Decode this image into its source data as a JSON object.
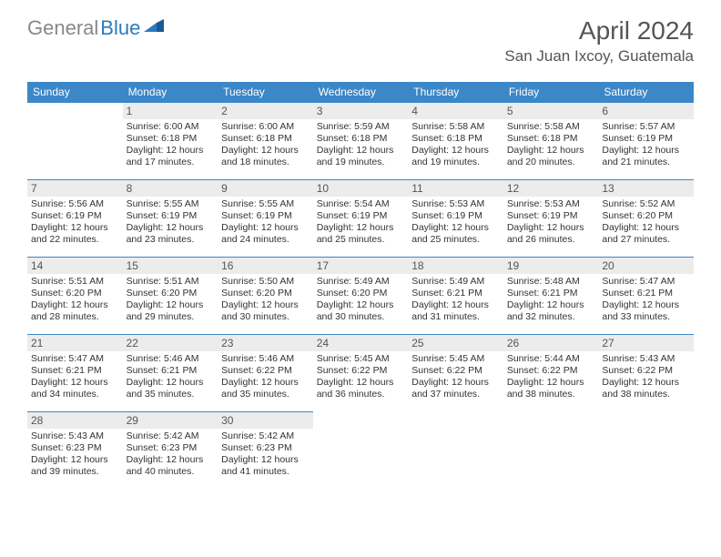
{
  "logo": {
    "gray": "General",
    "blue": "Blue"
  },
  "title": "April 2024",
  "location": "San Juan Ixcoy, Guatemala",
  "colors": {
    "header_bg": "#3b87c8",
    "header_text": "#ffffff",
    "daybar_bg": "#ececec",
    "text": "#333333",
    "title_text": "#555555",
    "logo_gray": "#888888",
    "logo_blue": "#2b7bbf",
    "border": "#3b87c8"
  },
  "typography": {
    "title_fontsize": 28,
    "location_fontsize": 17,
    "weekday_fontsize": 12,
    "daynum_fontsize": 12,
    "body_fontsize": 10.5
  },
  "weekdays": [
    "Sunday",
    "Monday",
    "Tuesday",
    "Wednesday",
    "Thursday",
    "Friday",
    "Saturday"
  ],
  "first_weekday_offset": 1,
  "days": [
    {
      "n": 1,
      "sr": "6:00 AM",
      "ss": "6:18 PM",
      "dl": "12 hours and 17 minutes."
    },
    {
      "n": 2,
      "sr": "6:00 AM",
      "ss": "6:18 PM",
      "dl": "12 hours and 18 minutes."
    },
    {
      "n": 3,
      "sr": "5:59 AM",
      "ss": "6:18 PM",
      "dl": "12 hours and 19 minutes."
    },
    {
      "n": 4,
      "sr": "5:58 AM",
      "ss": "6:18 PM",
      "dl": "12 hours and 19 minutes."
    },
    {
      "n": 5,
      "sr": "5:58 AM",
      "ss": "6:18 PM",
      "dl": "12 hours and 20 minutes."
    },
    {
      "n": 6,
      "sr": "5:57 AM",
      "ss": "6:19 PM",
      "dl": "12 hours and 21 minutes."
    },
    {
      "n": 7,
      "sr": "5:56 AM",
      "ss": "6:19 PM",
      "dl": "12 hours and 22 minutes."
    },
    {
      "n": 8,
      "sr": "5:55 AM",
      "ss": "6:19 PM",
      "dl": "12 hours and 23 minutes."
    },
    {
      "n": 9,
      "sr": "5:55 AM",
      "ss": "6:19 PM",
      "dl": "12 hours and 24 minutes."
    },
    {
      "n": 10,
      "sr": "5:54 AM",
      "ss": "6:19 PM",
      "dl": "12 hours and 25 minutes."
    },
    {
      "n": 11,
      "sr": "5:53 AM",
      "ss": "6:19 PM",
      "dl": "12 hours and 25 minutes."
    },
    {
      "n": 12,
      "sr": "5:53 AM",
      "ss": "6:19 PM",
      "dl": "12 hours and 26 minutes."
    },
    {
      "n": 13,
      "sr": "5:52 AM",
      "ss": "6:20 PM",
      "dl": "12 hours and 27 minutes."
    },
    {
      "n": 14,
      "sr": "5:51 AM",
      "ss": "6:20 PM",
      "dl": "12 hours and 28 minutes."
    },
    {
      "n": 15,
      "sr": "5:51 AM",
      "ss": "6:20 PM",
      "dl": "12 hours and 29 minutes."
    },
    {
      "n": 16,
      "sr": "5:50 AM",
      "ss": "6:20 PM",
      "dl": "12 hours and 30 minutes."
    },
    {
      "n": 17,
      "sr": "5:49 AM",
      "ss": "6:20 PM",
      "dl": "12 hours and 30 minutes."
    },
    {
      "n": 18,
      "sr": "5:49 AM",
      "ss": "6:21 PM",
      "dl": "12 hours and 31 minutes."
    },
    {
      "n": 19,
      "sr": "5:48 AM",
      "ss": "6:21 PM",
      "dl": "12 hours and 32 minutes."
    },
    {
      "n": 20,
      "sr": "5:47 AM",
      "ss": "6:21 PM",
      "dl": "12 hours and 33 minutes."
    },
    {
      "n": 21,
      "sr": "5:47 AM",
      "ss": "6:21 PM",
      "dl": "12 hours and 34 minutes."
    },
    {
      "n": 22,
      "sr": "5:46 AM",
      "ss": "6:21 PM",
      "dl": "12 hours and 35 minutes."
    },
    {
      "n": 23,
      "sr": "5:46 AM",
      "ss": "6:22 PM",
      "dl": "12 hours and 35 minutes."
    },
    {
      "n": 24,
      "sr": "5:45 AM",
      "ss": "6:22 PM",
      "dl": "12 hours and 36 minutes."
    },
    {
      "n": 25,
      "sr": "5:45 AM",
      "ss": "6:22 PM",
      "dl": "12 hours and 37 minutes."
    },
    {
      "n": 26,
      "sr": "5:44 AM",
      "ss": "6:22 PM",
      "dl": "12 hours and 38 minutes."
    },
    {
      "n": 27,
      "sr": "5:43 AM",
      "ss": "6:22 PM",
      "dl": "12 hours and 38 minutes."
    },
    {
      "n": 28,
      "sr": "5:43 AM",
      "ss": "6:23 PM",
      "dl": "12 hours and 39 minutes."
    },
    {
      "n": 29,
      "sr": "5:42 AM",
      "ss": "6:23 PM",
      "dl": "12 hours and 40 minutes."
    },
    {
      "n": 30,
      "sr": "5:42 AM",
      "ss": "6:23 PM",
      "dl": "12 hours and 41 minutes."
    }
  ]
}
